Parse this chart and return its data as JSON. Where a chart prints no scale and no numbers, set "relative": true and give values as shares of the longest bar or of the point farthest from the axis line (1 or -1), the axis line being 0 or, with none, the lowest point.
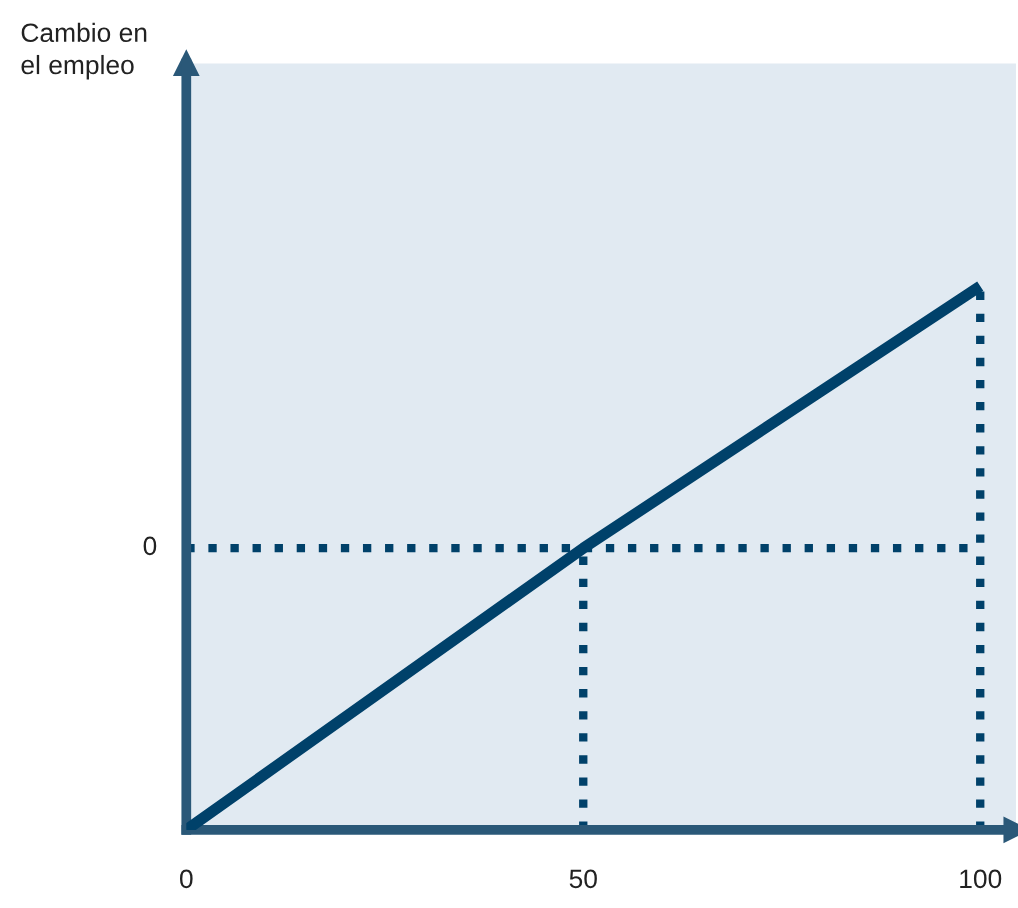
{
  "chart_data": {
    "type": "line",
    "relative": true,
    "annotations": [
      "Cambio en\nel empleo"
    ],
    "x": [
      0,
      50,
      100
    ],
    "xlim": [
      0,
      104.5
    ],
    "xticks": [
      0,
      50,
      100
    ],
    "grid": false,
    "marker": "none",
    "line_style": "solid",
    "series": [
      {
        "color": "#00416a",
        "values": [
          -1,
          0,
          0.93
        ]
      }
    ],
    "ref_lines": [
      {
        "axis": "y",
        "value": 0,
        "label": "0",
        "color": "#00416a",
        "line_style": "dotted"
      },
      {
        "axis": "x",
        "value": 50,
        "color": "#00416a",
        "line_style": "dotted"
      },
      {
        "axis": "x",
        "value": 100,
        "color": "#00416a",
        "line_style": "dotted"
      }
    ]
  }
}
